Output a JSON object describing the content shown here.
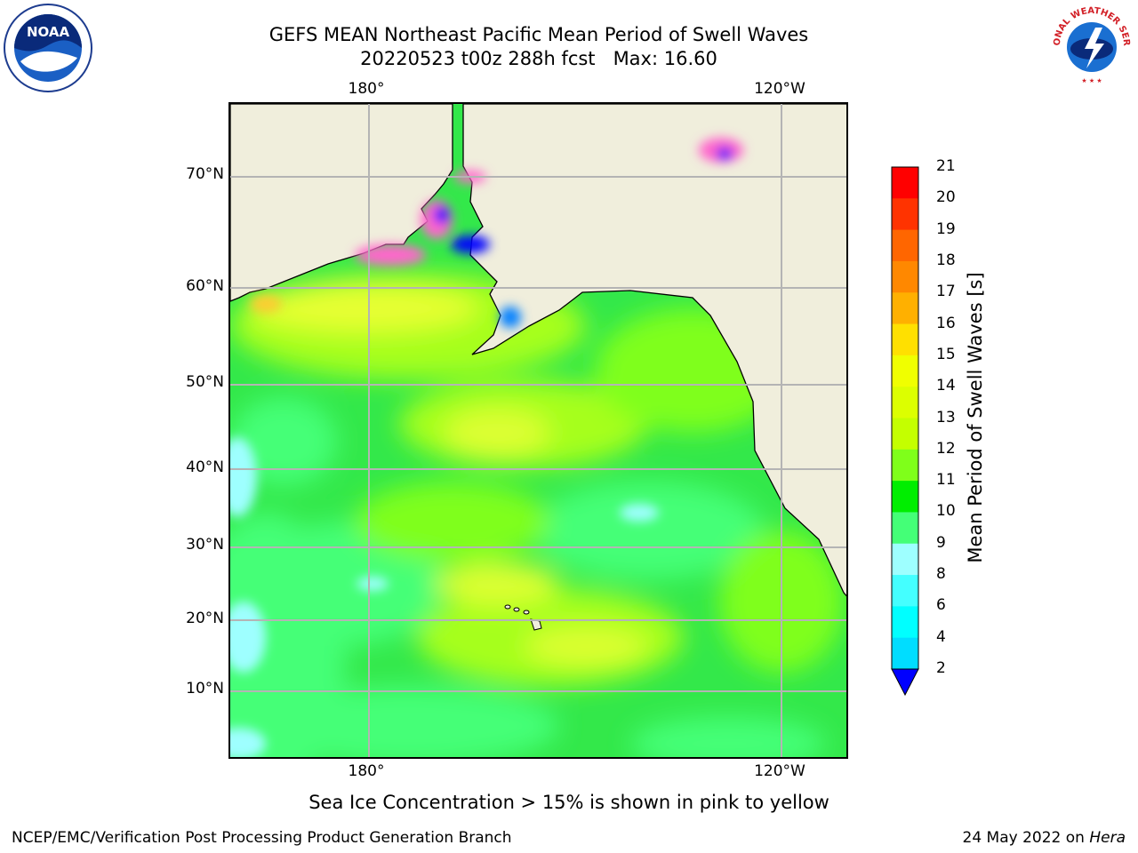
{
  "title": {
    "line1": "GEFS MEAN Northeast Pacific Mean Period of Swell Waves",
    "line2": "20220523 t00z 288h fcst   Max: 16.60"
  },
  "map": {
    "lon_labels": [
      "180°",
      "120°W"
    ],
    "lat_labels": [
      "70°N",
      "60°N",
      "50°N",
      "40°N",
      "30°N",
      "20°N",
      "10°N"
    ],
    "land_color": "#f0eedc",
    "ocean_dominant_color": "#33e84a"
  },
  "colorbar": {
    "label": "Mean Period of Swell Waves [s]",
    "ticks": [
      "21",
      "20",
      "19",
      "18",
      "17",
      "16",
      "15",
      "14",
      "13",
      "12",
      "11",
      "10",
      "9",
      "8",
      "6",
      "4",
      "2"
    ],
    "colors": [
      "#ff0000",
      "#ff3300",
      "#ff6600",
      "#ff8800",
      "#ffb000",
      "#ffe000",
      "#f0ff00",
      "#dcff00",
      "#c4ff00",
      "#7fff1a",
      "#00ee00",
      "#44ff77",
      "#9effff",
      "#44ffff",
      "#00ffff",
      "#00ddff",
      "#007fff"
    ],
    "extend_color": "#0000ff"
  },
  "footnote": "Sea Ice Concentration > 15% is shown in pink to yellow",
  "credits": {
    "left": "NCEP/EMC/Verification Post Processing Product Generation Branch",
    "right_date": "24 May 2022 on ",
    "right_machine": "Hera"
  },
  "logos": {
    "noaa_text": "NOAA",
    "nws_text": "NATIONAL WEATHER SERVICE"
  }
}
